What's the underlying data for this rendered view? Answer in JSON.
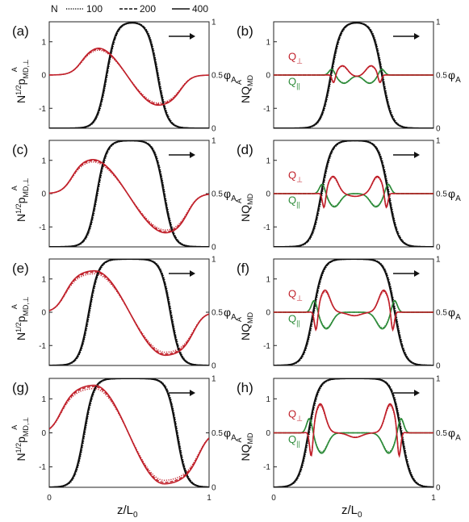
{
  "legend": {
    "title": "N",
    "entries": [
      "100",
      "200",
      "400"
    ]
  },
  "colors": {
    "profile": "#111111",
    "p_perp": "#c0202a",
    "q_perp": "#c0202a",
    "q_par": "#2e8b3a"
  },
  "axes": {
    "x_label": "z/L",
    "x_label_sub": "0",
    "x_ticks": [
      "0",
      "1"
    ],
    "left_ticks": [
      "1",
      "0",
      "-1"
    ],
    "right_ticks": [
      "1",
      "0.5",
      "0"
    ],
    "right_label": "φ",
    "right_label_sub": "A",
    "left_col_label": {
      "main": "N",
      "sup": "1/2",
      "p": "p",
      "sub": "MD,⊥",
      "sup2": "A"
    },
    "right_col_label": {
      "main": "NQ",
      "sub": "MD",
      "sup": "A"
    },
    "q_perp_label": {
      "main": "Q",
      "sub": "⊥"
    },
    "q_par_label": {
      "main": "Q",
      "sub": "||"
    },
    "arrow": "→"
  },
  "panels": [
    {
      "label": "(a)"
    },
    {
      "label": "(b)"
    },
    {
      "label": "(c)"
    },
    {
      "label": "(d)"
    },
    {
      "label": "(e)"
    },
    {
      "label": "(f)"
    },
    {
      "label": "(g)"
    },
    {
      "label": "(h)"
    }
  ],
  "chart_data": [
    {
      "panel": "(a)",
      "type": "line",
      "rows": "p_perp",
      "phi_plateau": [
        0.36,
        0.68
      ],
      "p_extrema": [
        {
          "z": 0.29,
          "value": 0.85
        },
        {
          "z": 0.69,
          "value": -0.92
        }
      ],
      "xlim": [
        0,
        1
      ],
      "ylim_left": [
        -1.6,
        1.6
      ],
      "ylim_right": [
        0,
        1
      ]
    },
    {
      "panel": "(b)",
      "type": "line",
      "rows": "Q",
      "phi_plateau": [
        0.36,
        0.68
      ],
      "q_perp_amplitude": 0.3,
      "q_par_amplitude": 0.25,
      "xlim": [
        0,
        1
      ],
      "ylim_left": [
        -1.6,
        1.6
      ],
      "ylim_right": [
        0,
        1
      ]
    },
    {
      "panel": "(c)",
      "type": "line",
      "rows": "p_perp",
      "phi_plateau": [
        0.3,
        0.72
      ],
      "p_extrema": [
        {
          "z": 0.26,
          "value": 1.05
        },
        {
          "z": 0.74,
          "value": -1.2
        }
      ],
      "xlim": [
        0,
        1
      ],
      "ylim_left": [
        -1.6,
        1.6
      ],
      "ylim_right": [
        0,
        1
      ]
    },
    {
      "panel": "(d)",
      "type": "line",
      "rows": "Q",
      "phi_plateau": [
        0.3,
        0.72
      ],
      "q_perp_amplitude": 0.55,
      "q_par_amplitude": 0.4,
      "xlim": [
        0,
        1
      ],
      "ylim_left": [
        -1.6,
        1.6
      ],
      "ylim_right": [
        0,
        1
      ]
    },
    {
      "panel": "(e)",
      "type": "line",
      "rows": "p_perp",
      "phi_plateau": [
        0.25,
        0.76
      ],
      "p_extrema": [
        {
          "z": 0.28,
          "value": 1.25
        },
        {
          "z": 0.73,
          "value": -1.3
        }
      ],
      "xlim": [
        0,
        1
      ],
      "ylim_left": [
        -1.6,
        1.6
      ],
      "ylim_right": [
        0,
        1
      ]
    },
    {
      "panel": "(f)",
      "type": "line",
      "rows": "Q",
      "phi_plateau": [
        0.25,
        0.76
      ],
      "q_perp_amplitude": 0.7,
      "q_par_amplitude": 0.5,
      "xlim": [
        0,
        1
      ],
      "ylim_left": [
        -1.6,
        1.6
      ],
      "ylim_right": [
        0,
        1
      ]
    },
    {
      "panel": "(g)",
      "type": "line",
      "rows": "p_perp",
      "phi_plateau": [
        0.22,
        0.8
      ],
      "p_extrema": [
        {
          "z": 0.28,
          "value": 1.4
        },
        {
          "z": 0.72,
          "value": -1.5
        }
      ],
      "xlim": [
        0,
        1
      ],
      "ylim_left": [
        -1.6,
        1.6
      ],
      "ylim_right": [
        0,
        1
      ]
    },
    {
      "panel": "(h)",
      "type": "line",
      "rows": "Q",
      "phi_plateau": [
        0.22,
        0.8
      ],
      "q_perp_amplitude": 0.9,
      "q_par_amplitude": 0.6,
      "xlim": [
        0,
        1
      ],
      "ylim_left": [
        -1.6,
        1.6
      ],
      "ylim_right": [
        0,
        1
      ]
    }
  ]
}
